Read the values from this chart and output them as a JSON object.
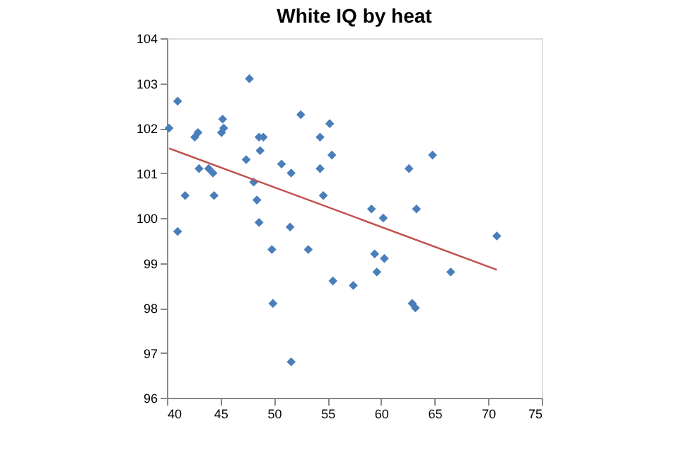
{
  "chart_data": {
    "type": "scatter",
    "title": "White IQ by heat",
    "series": [
      {
        "color": "#4a7ebb",
        "marker": "diamond",
        "x": [
          40.2,
          41,
          41,
          41.7,
          42.6,
          42.9,
          43,
          43.9,
          44.3,
          44.4,
          45.1,
          45.2,
          45.3,
          47.4,
          47.7,
          48.1,
          48.4,
          48.6,
          48.6,
          49.0,
          48.7,
          49.8,
          49.9,
          50.7,
          51.5,
          51.6,
          51.6,
          52.5,
          53.2,
          54.3,
          54.3,
          54.6,
          55.2,
          55.4,
          55.5,
          57.4,
          59.1,
          59.4,
          59.6,
          60.2,
          60.3,
          62.6,
          62.9,
          63.2,
          63.3,
          64.8,
          66.5,
          70.8
        ],
        "values": [
          102.0,
          102.6,
          99.7,
          100.5,
          101.8,
          101.9,
          101.1,
          101.1,
          101.0,
          100.5,
          101.9,
          102.2,
          102.0,
          101.3,
          103.1,
          100.8,
          100.4,
          99.9,
          101.8,
          101.8,
          101.5,
          99.3,
          98.1,
          101.2,
          99.8,
          101.0,
          96.8,
          102.3,
          99.3,
          101.1,
          101.8,
          100.5,
          102.1,
          101.4,
          98.6,
          98.5,
          100.2,
          99.2,
          98.8,
          100.0,
          99.1,
          101.1,
          98.1,
          98.0,
          100.2,
          101.4,
          98.8,
          99.6
        ]
      },
      {
        "type": "line",
        "color": "#c0504d",
        "x": [
          40.2,
          70.8
        ],
        "values": [
          101.55,
          98.85
        ]
      }
    ],
    "xlim": [
      40,
      75
    ],
    "xticks": [
      40,
      45,
      50,
      55,
      60,
      65,
      70,
      75
    ],
    "ylim": [
      96,
      104
    ],
    "yticks": [
      96,
      97,
      98,
      99,
      100,
      101,
      102,
      103,
      104
    ],
    "grid": false
  }
}
